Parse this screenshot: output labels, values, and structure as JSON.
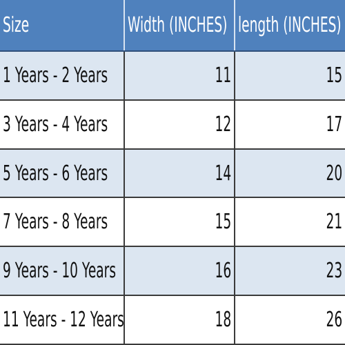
{
  "table": {
    "header": [
      "Size",
      "Width (INCHES)",
      "length (INCHES)"
    ],
    "rows": [
      [
        "1 Years - 2 Years",
        11,
        15
      ],
      [
        "3 Years - 4 Years",
        12,
        17
      ],
      [
        "5 Years - 6 Years",
        14,
        20
      ],
      [
        "7 Years - 8 Years",
        15,
        21
      ],
      [
        "9 Years - 10 Years",
        16,
        23
      ],
      [
        "11 Years - 12 Years",
        18,
        26
      ]
    ]
  }
}
